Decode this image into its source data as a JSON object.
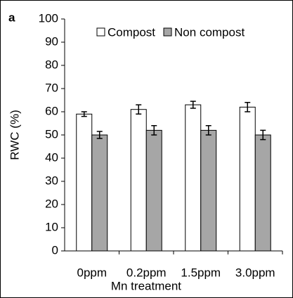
{
  "chart_data": {
    "type": "bar",
    "panel_label": "a",
    "x_label": "Mn treatment",
    "y_label": "RWC (%)",
    "categories": [
      "0ppm",
      "0.2ppm",
      "1.5ppm",
      "3.0ppm"
    ],
    "series": [
      {
        "name": "Compost",
        "color": "#ffffff",
        "values": [
          59,
          61,
          63,
          62
        ],
        "errors": [
          1,
          2,
          1.5,
          2
        ]
      },
      {
        "name": "Non compost",
        "color": "#a6a6a6",
        "values": [
          50,
          52,
          52,
          50
        ],
        "errors": [
          1.5,
          2,
          2,
          2
        ]
      }
    ],
    "ylim": [
      0,
      100
    ],
    "yticks": [
      0,
      10,
      20,
      30,
      40,
      50,
      60,
      70,
      80,
      90,
      100
    ],
    "grid": false,
    "legend": "top"
  }
}
